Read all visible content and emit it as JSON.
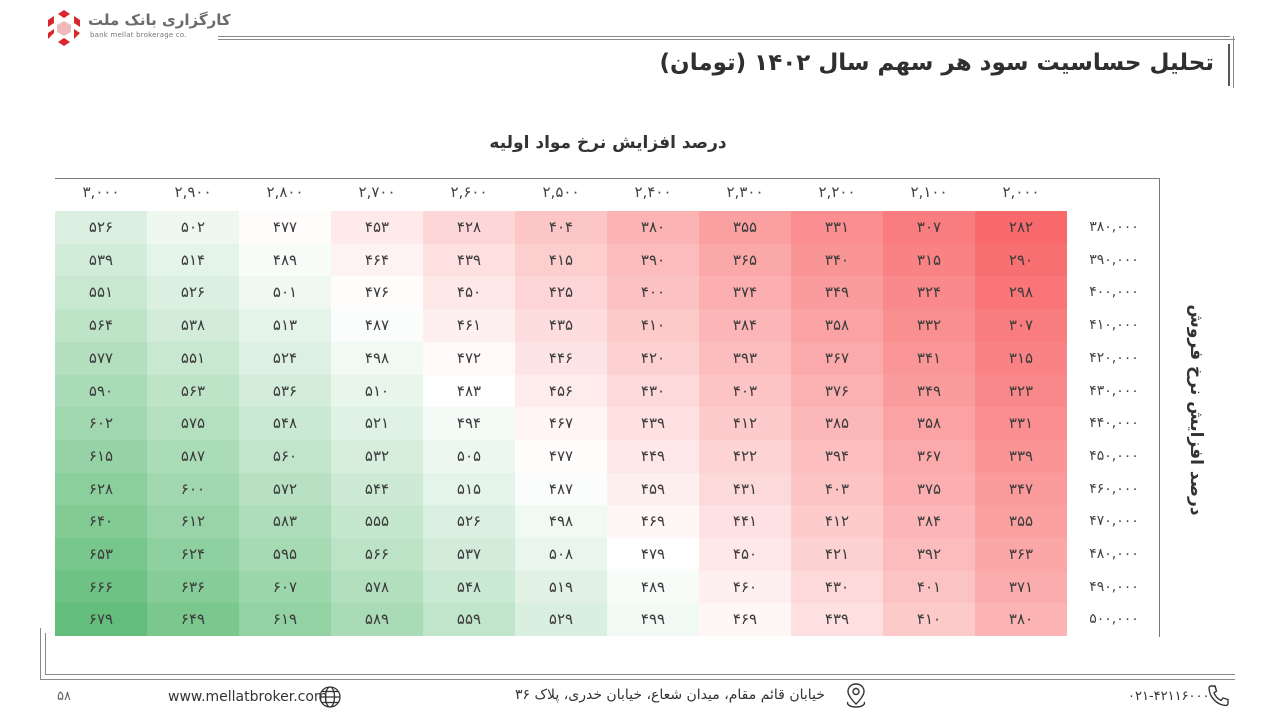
{
  "brand": {
    "name": "کارگزاری بانک ملت",
    "subtitle": "bank mellat brokerage co."
  },
  "title": "تحلیل حساسیت سود هر سهم سال ۱۴۰۲ (تومان)",
  "col_axis_title": "درصد افزایش نرخ مواد اولیه",
  "row_axis_title": "درصد افزایش نرخ فروش",
  "colors": {
    "low": "#f8696b",
    "mid": "#ffffff",
    "high": "#63be7b"
  },
  "chart_data": {
    "type": "heatmap",
    "columns": [
      "۲,۰۰۰",
      "۲,۱۰۰",
      "۲,۲۰۰",
      "۲,۳۰۰",
      "۲,۴۰۰",
      "۲,۵۰۰",
      "۲,۶۰۰",
      "۲,۷۰۰",
      "۲,۸۰۰",
      "۲,۹۰۰",
      "۳,۰۰۰"
    ],
    "rows": [
      "۳۸۰,۰۰۰",
      "۳۹۰,۰۰۰",
      "۴۰۰,۰۰۰",
      "۴۱۰,۰۰۰",
      "۴۲۰,۰۰۰",
      "۴۳۰,۰۰۰",
      "۴۴۰,۰۰۰",
      "۴۵۰,۰۰۰",
      "۴۶۰,۰۰۰",
      "۴۷۰,۰۰۰",
      "۴۸۰,۰۰۰",
      "۴۹۰,۰۰۰",
      "۵۰۰,۰۰۰"
    ],
    "values": [
      [
        282,
        307,
        331,
        355,
        380,
        404,
        428,
        453,
        477,
        502,
        526
      ],
      [
        290,
        315,
        340,
        365,
        390,
        415,
        439,
        464,
        489,
        514,
        539
      ],
      [
        298,
        324,
        349,
        374,
        400,
        425,
        450,
        476,
        501,
        526,
        551
      ],
      [
        307,
        332,
        358,
        384,
        410,
        435,
        461,
        487,
        513,
        538,
        564
      ],
      [
        315,
        341,
        367,
        393,
        420,
        446,
        472,
        498,
        524,
        551,
        577
      ],
      [
        323,
        349,
        376,
        403,
        430,
        456,
        483,
        510,
        536,
        563,
        590
      ],
      [
        331,
        358,
        385,
        412,
        439,
        467,
        494,
        521,
        548,
        575,
        602
      ],
      [
        339,
        367,
        394,
        422,
        449,
        477,
        505,
        532,
        560,
        587,
        615
      ],
      [
        347,
        375,
        403,
        431,
        459,
        487,
        515,
        544,
        572,
        600,
        628
      ],
      [
        355,
        384,
        412,
        441,
        469,
        498,
        526,
        555,
        583,
        612,
        640
      ],
      [
        363,
        392,
        421,
        450,
        479,
        508,
        537,
        566,
        595,
        624,
        653
      ],
      [
        371,
        401,
        430,
        460,
        489,
        519,
        548,
        578,
        607,
        636,
        666
      ],
      [
        380,
        410,
        439,
        469,
        499,
        529,
        559,
        589,
        619,
        649,
        679
      ]
    ]
  },
  "footer": {
    "page": "۵۸",
    "website": "www.mellatbroker.com",
    "address": "خیابان قائم مقام، میدان شعاع، خیابان خدری، پلاک ۳۶",
    "phone": "۰۲۱-۴۲۱۱۶۰۰۰"
  }
}
